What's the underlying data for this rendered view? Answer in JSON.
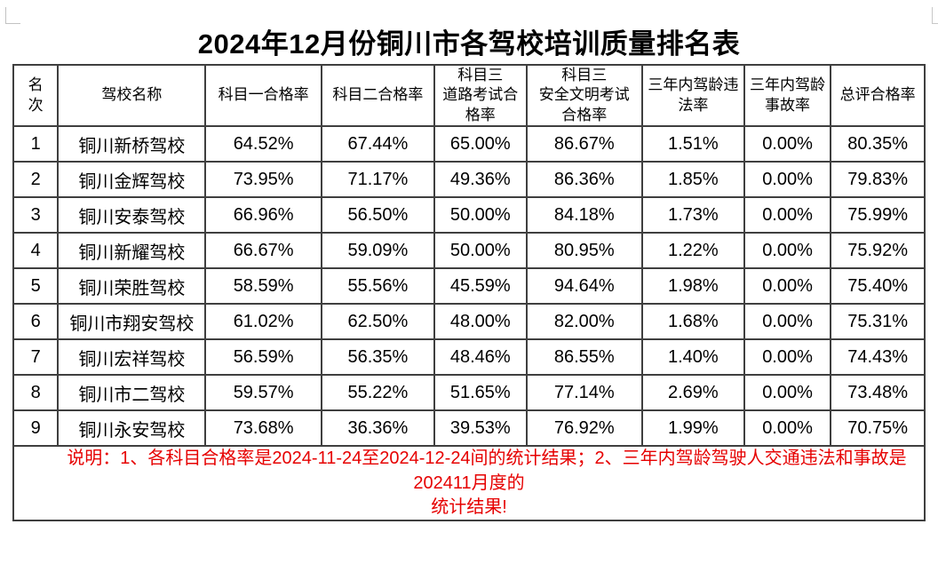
{
  "title": "2024年12月份铜川市各驾校培训质量排名表",
  "table": {
    "headers": [
      "名\n次",
      "驾校名称",
      "科目一合格率",
      "科目二合格率",
      "科目三\n道路考试合\n格率",
      "科目三\n安全文明考试\n合格率",
      "三年内驾龄违\n法率",
      "三年内驾龄\n事故率",
      "总评合格率"
    ],
    "col_widths_percent": [
      4.9,
      16.2,
      12.7,
      12.4,
      10.1,
      12.7,
      11.2,
      9.5,
      10.3
    ],
    "rows": [
      [
        "1",
        "铜川新桥驾校",
        "64.52%",
        "67.44%",
        "65.00%",
        "86.67%",
        "1.51%",
        "0.00%",
        "80.35%"
      ],
      [
        "2",
        "铜川金辉驾校",
        "73.95%",
        "71.17%",
        "49.36%",
        "86.36%",
        "1.85%",
        "0.00%",
        "79.83%"
      ],
      [
        "3",
        "铜川安泰驾校",
        "66.96%",
        "56.50%",
        "50.00%",
        "84.18%",
        "1.73%",
        "0.00%",
        "75.99%"
      ],
      [
        "4",
        "铜川新耀驾校",
        "66.67%",
        "59.09%",
        "50.00%",
        "80.95%",
        "1.22%",
        "0.00%",
        "75.92%"
      ],
      [
        "5",
        "铜川荣胜驾校",
        "58.59%",
        "55.56%",
        "45.59%",
        "94.64%",
        "1.98%",
        "0.00%",
        "75.40%"
      ],
      [
        "6",
        "铜川市翔安驾校",
        "61.02%",
        "62.50%",
        "48.00%",
        "82.00%",
        "1.68%",
        "0.00%",
        "75.31%"
      ],
      [
        "7",
        "铜川宏祥驾校",
        "56.59%",
        "56.35%",
        "48.46%",
        "86.55%",
        "1.40%",
        "0.00%",
        "74.43%"
      ],
      [
        "8",
        "铜川市二驾校",
        "59.57%",
        "55.22%",
        "51.65%",
        "77.14%",
        "2.69%",
        "0.00%",
        "73.48%"
      ],
      [
        "9",
        "铜川永安驾校",
        "73.68%",
        "36.36%",
        "39.53%",
        "76.92%",
        "1.99%",
        "0.00%",
        "70.75%"
      ]
    ]
  },
  "note": {
    "lines": [
      "说明：1、各科目合格率是2024-11-24至2024-12-24间的统计结果；2、三年内驾龄驾驶人交通违法和事故是202411月度的",
      "统计结果!"
    ],
    "color": "#e60000"
  },
  "colors": {
    "table_border": "#3f3f3f",
    "note_red": "#e60000",
    "background": "#ffffff"
  }
}
